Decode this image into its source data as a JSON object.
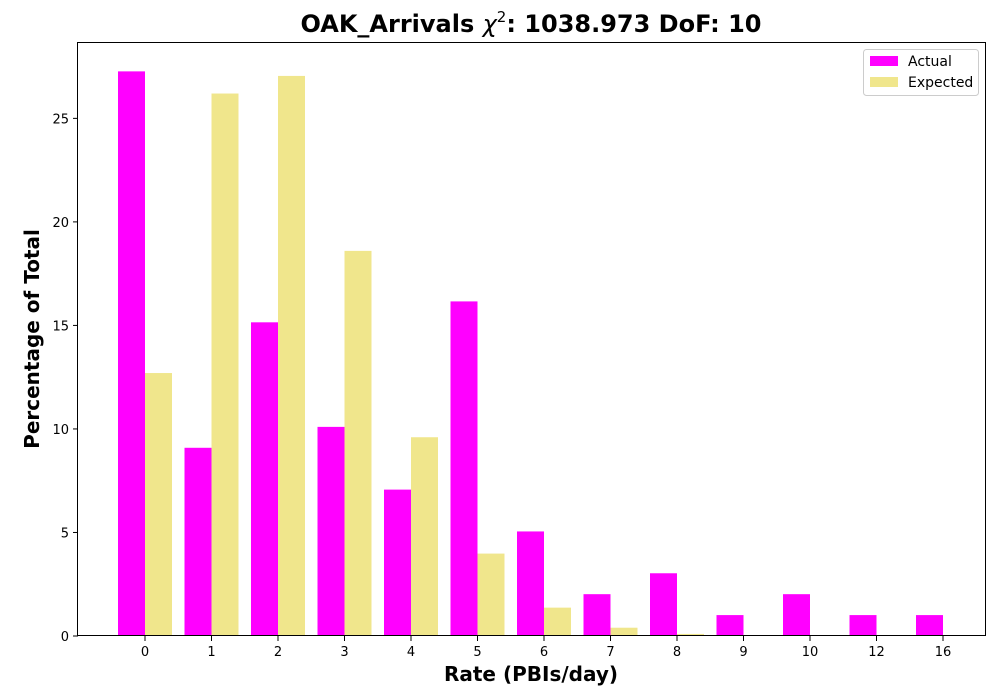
{
  "chart_data": {
    "type": "bar",
    "title_prefix": "OAK_Arrivals ",
    "title_chi": "χ",
    "title_sup": "2",
    "title_suffix": ": 1038.973 DoF: 10",
    "xlabel": "Rate (PBIs/day)",
    "ylabel": "Percentage of Total",
    "categories": [
      "0",
      "1",
      "2",
      "3",
      "4",
      "5",
      "6",
      "7",
      "8",
      "9",
      "10",
      "12",
      "16"
    ],
    "series": [
      {
        "name": "Actual",
        "color": "#ff00ff",
        "values": [
          27.27,
          9.09,
          15.15,
          10.1,
          7.07,
          16.16,
          5.05,
          2.02,
          3.03,
          1.01,
          2.02,
          1.01,
          1.01
        ]
      },
      {
        "name": "Expected",
        "color": "#f0e68c",
        "values": [
          12.7,
          26.2,
          27.05,
          18.6,
          9.6,
          3.98,
          1.37,
          0.4,
          0.1,
          0.03,
          0.0,
          0.0,
          0.0
        ]
      }
    ],
    "ylim": [
      0,
      28.64
    ],
    "yticks": [
      0,
      5,
      10,
      15,
      20,
      25
    ],
    "grid": false,
    "legend_position": "top-right"
  }
}
